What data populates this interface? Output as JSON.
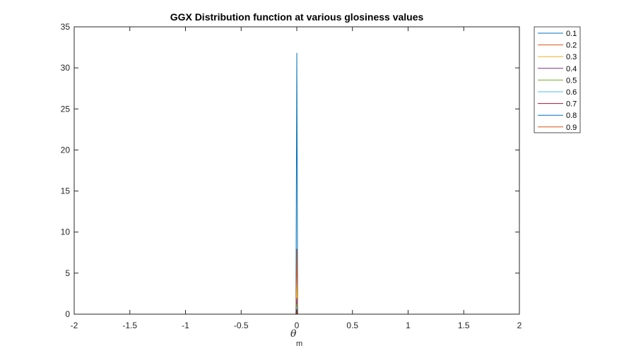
{
  "chart_data": {
    "type": "line",
    "title": "GGX Distribution function at various glosiness values",
    "xlabel_symbol": "θ",
    "xlabel_subscript": "m",
    "ylabel": "",
    "xlim": [
      -2,
      2
    ],
    "ylim": [
      0,
      35
    ],
    "xticks": [
      -2,
      -1.5,
      -1,
      -0.5,
      0,
      0.5,
      1,
      1.5,
      2
    ],
    "xtick_labels": [
      "-2",
      "-1.5",
      "-1",
      "-0.5",
      "0",
      "0.5",
      "1",
      "1.5",
      "2"
    ],
    "yticks": [
      0,
      5,
      10,
      15,
      20,
      25,
      30,
      35
    ],
    "ytick_labels": [
      "0",
      "5",
      "10",
      "15",
      "20",
      "25",
      "30",
      "35"
    ],
    "grid": false,
    "legend_position": "outside top-right",
    "x_range_of_data": [
      -1.5708,
      1.5708
    ],
    "series": [
      {
        "name": "0.1",
        "color": "#0072BD",
        "peak": 31.83,
        "tail": 0.003
      },
      {
        "name": "0.2",
        "color": "#D95319",
        "peak": 7.96,
        "tail": 0.05
      },
      {
        "name": "0.3",
        "color": "#EDB120",
        "peak": 3.54,
        "tail": 0.07
      },
      {
        "name": "0.4",
        "color": "#7E2F8E",
        "peak": 1.99,
        "tail": 0.08
      },
      {
        "name": "0.5",
        "color": "#77AC30",
        "peak": 1.27,
        "tail": 0.12
      },
      {
        "name": "0.6",
        "color": "#4DBEEE",
        "peak": 0.88,
        "tail": 0.14
      },
      {
        "name": "0.7",
        "color": "#A2142F",
        "peak": 0.65,
        "tail": 0.15
      },
      {
        "name": "0.8",
        "color": "#0072BD",
        "peak": 0.5,
        "tail": 0.17
      },
      {
        "name": "0.9",
        "color": "#D95319",
        "peak": 0.39,
        "tail": 0.19
      }
    ]
  }
}
